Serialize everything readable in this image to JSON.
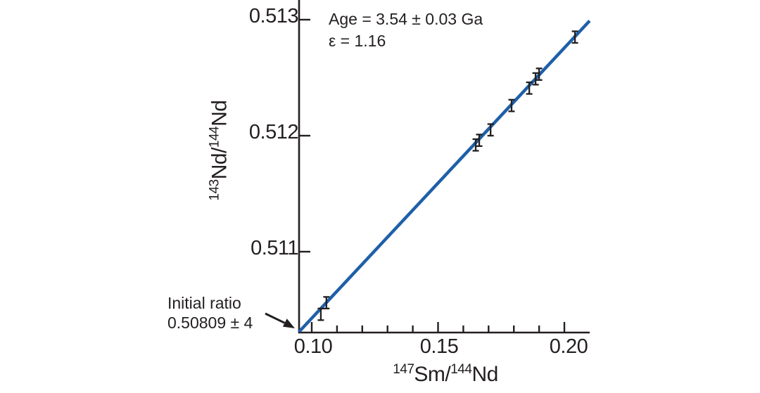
{
  "chart_data": {
    "type": "scatter",
    "title": "",
    "xlabel": "147Sm/144Nd",
    "ylabel": "143Nd/144Nd",
    "xlabel_parts": {
      "sup1": "147",
      "mid": "Sm/",
      "sup2": "144",
      "end": "Nd"
    },
    "ylabel_parts": {
      "sup1": "143",
      "mid": "Nd/",
      "sup2": "144",
      "end": "Nd"
    },
    "xlim": [
      0.095,
      0.21
    ],
    "ylim": [
      0.5103,
      0.51317
    ],
    "grid": false,
    "legend_position": "none",
    "x_major_ticks": [
      {
        "value": 0.1,
        "label": "0.10"
      },
      {
        "value": 0.15,
        "label": "0.15"
      },
      {
        "value": 0.2,
        "label": "0.20"
      }
    ],
    "x_minor_ticks": [
      0.11,
      0.12,
      0.13,
      0.14,
      0.16,
      0.17,
      0.18,
      0.19
    ],
    "y_ticks": [
      {
        "value": 0.513,
        "label": "0.513"
      },
      {
        "value": 0.512,
        "label": "0.512"
      },
      {
        "value": 0.511,
        "label": "0.511"
      }
    ],
    "isochron_line": {
      "color": "#1f5fa8",
      "x_start": 0.095,
      "y_start": 0.51031,
      "x_end": 0.21,
      "y_end": 0.51299,
      "slope": 0.0234,
      "intercept": 0.50809
    },
    "points": [
      {
        "x": 0.1036,
        "y": 0.51046,
        "yerr": 5e-05
      },
      {
        "x": 0.1058,
        "y": 0.51056,
        "yerr": 5e-05
      },
      {
        "x": 0.1649,
        "y": 0.51192,
        "yerr": 5e-05
      },
      {
        "x": 0.1663,
        "y": 0.51196,
        "yerr": 5e-05
      },
      {
        "x": 0.1708,
        "y": 0.51205,
        "yerr": 5e-05
      },
      {
        "x": 0.1791,
        "y": 0.51226,
        "yerr": 5e-05
      },
      {
        "x": 0.1861,
        "y": 0.51241,
        "yerr": 5e-05
      },
      {
        "x": 0.1886,
        "y": 0.51249,
        "yerr": 5e-05
      },
      {
        "x": 0.19,
        "y": 0.51253,
        "yerr": 5e-05
      },
      {
        "x": 0.2042,
        "y": 0.51285,
        "yerr": 5e-05
      }
    ],
    "annotations": {
      "age": "Age = 3.54 ± 0.03 Ga",
      "epsilon": "ε = 1.16",
      "initial_ratio_line1": "Initial ratio",
      "initial_ratio_line2": "0.50809 ± 4"
    },
    "colors": {
      "line": "#1f5fa8",
      "axis": "#231f20",
      "error_bar": "#231f20",
      "text": "#231f20",
      "background": "#ffffff"
    }
  }
}
